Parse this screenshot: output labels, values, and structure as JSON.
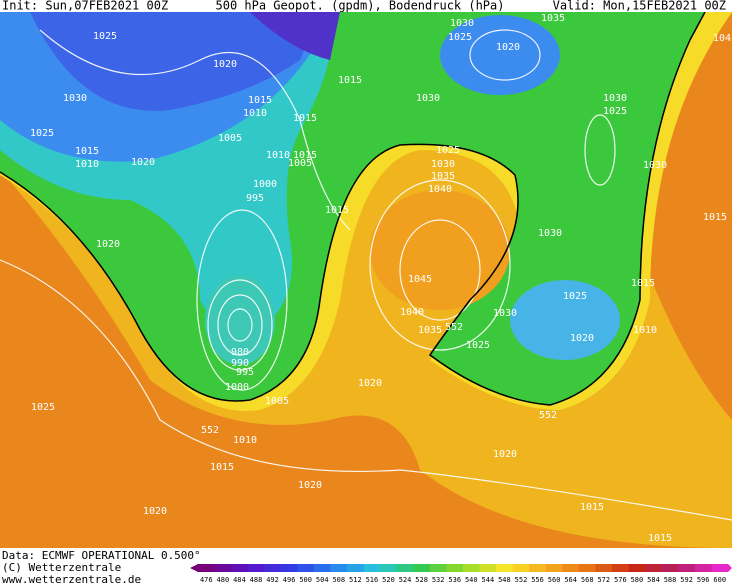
{
  "header": {
    "init": "Init: Sun,07FEB2021 00Z",
    "title": "500 hPa Geopot. (gpdm), Bodendruck (hPa)",
    "valid": "Valid: Mon,15FEB2021 00Z"
  },
  "map": {
    "isobar_labels": [
      "1025",
      "1020",
      "1030",
      "1025",
      "1015",
      "1010",
      "1020",
      "1015",
      "1010",
      "1005",
      "1015",
      "1015",
      "1010",
      "1015",
      "1005",
      "1000",
      "995",
      "1015",
      "1020",
      "1030",
      "1025",
      "1020",
      "1035",
      "1030",
      "1030",
      "1025",
      "1030",
      "1025",
      "1030",
      "1035",
      "1040",
      "1030",
      "1045",
      "1040",
      "1035",
      "1025",
      "1030",
      "1025",
      "1015",
      "1020",
      "1010",
      "1015",
      "1020",
      "1000",
      "1005",
      "1010",
      "1015",
      "1025",
      "1020",
      "1020",
      "1020",
      "1015",
      "1015",
      "104",
      "990",
      "995",
      "980"
    ],
    "contour_labels": [
      "552",
      "552",
      "552"
    ]
  },
  "footer": {
    "data": "Data: ECMWF OPERATIONAL 0.500°",
    "copyright": "(C) Wetterzentrale",
    "url": "www.wetterzentrale.de"
  },
  "colorbar": {
    "labels": [
      "476",
      "480",
      "484",
      "488",
      "492",
      "496",
      "500",
      "504",
      "508",
      "512",
      "516",
      "520",
      "524",
      "528",
      "532",
      "536",
      "540",
      "544",
      "548",
      "552",
      "556",
      "560",
      "564",
      "568",
      "572",
      "576",
      "580",
      "584",
      "588",
      "592",
      "596",
      "600"
    ]
  }
}
